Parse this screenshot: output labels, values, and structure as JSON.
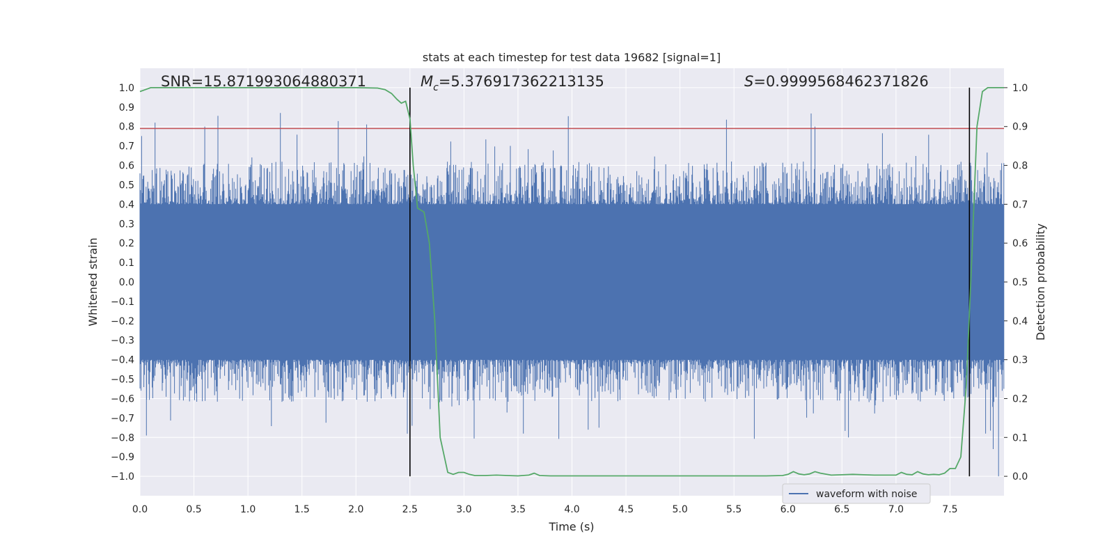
{
  "chart_data": {
    "type": "line",
    "title": "stats at each timestep for test data 19682 [signal=1]",
    "xlabel": "Time (s)",
    "ylabel_left": "Whitened strain",
    "ylabel_right": "Detection probability",
    "xlim": [
      0.0,
      8.0
    ],
    "ylim_left": [
      -1.1,
      1.1
    ],
    "ylim_right": [
      -0.05,
      1.05
    ],
    "x_ticks": [
      "0.0",
      "0.5",
      "1.0",
      "1.5",
      "2.0",
      "2.5",
      "3.0",
      "3.5",
      "4.0",
      "4.5",
      "5.0",
      "5.5",
      "6.0",
      "6.5",
      "7.0",
      "7.5"
    ],
    "y_ticks_left": [
      "−1.0",
      "−0.9",
      "−0.8",
      "−0.7",
      "−0.6",
      "−0.5",
      "−0.4",
      "−0.3",
      "−0.2",
      "−0.1",
      "0.0",
      "0.1",
      "0.2",
      "0.3",
      "0.4",
      "0.5",
      "0.6",
      "0.7",
      "0.8",
      "0.9",
      "1.0"
    ],
    "y_ticks_right": [
      "0.0",
      "0.1",
      "0.2",
      "0.3",
      "0.4",
      "0.5",
      "0.6",
      "0.7",
      "0.8",
      "0.9",
      "1.0"
    ],
    "grid": true,
    "legend_position": "lower-right",
    "annotations": {
      "snr": "SNR=15.871993064880371",
      "mc_symbol": "M",
      "mc_sub": "c",
      "mc_value": "=5.376917362213135",
      "s_symbol": "S",
      "s_value": "=0.9999568462371826"
    },
    "series": [
      {
        "name": "waveform with noise",
        "axis": "left",
        "color": "#4c72b0",
        "kind": "noisy-strain",
        "envelope_upper": 0.4,
        "envelope_lower": -0.4,
        "peak_max": 0.87,
        "peak_min": -1.0
      },
      {
        "axis": "right",
        "color": "#55a868",
        "x": [
          0.0,
          0.05,
          0.1,
          0.5,
          1.0,
          1.5,
          2.0,
          2.2,
          2.27,
          2.33,
          2.38,
          2.42,
          2.46,
          2.5,
          2.53,
          2.57,
          2.63,
          2.68,
          2.73,
          2.78,
          2.85,
          2.9,
          2.95,
          3.0,
          3.05,
          3.1,
          3.2,
          3.3,
          3.4,
          3.5,
          3.6,
          3.65,
          3.7,
          3.8,
          4.0,
          4.5,
          5.0,
          5.5,
          5.8,
          5.95,
          6.0,
          6.05,
          6.1,
          6.15,
          6.2,
          6.25,
          6.3,
          6.4,
          6.5,
          6.6,
          6.7,
          6.8,
          6.9,
          6.95,
          7.0,
          7.05,
          7.1,
          7.15,
          7.2,
          7.25,
          7.3,
          7.35,
          7.4,
          7.45,
          7.5,
          7.55,
          7.6,
          7.65,
          7.7,
          7.75,
          7.8,
          7.85,
          7.9,
          7.95,
          8.0
        ],
        "y": [
          0.99,
          0.995,
          1.0,
          1.0,
          1.0,
          1.0,
          1.0,
          0.999,
          0.995,
          0.985,
          0.97,
          0.96,
          0.965,
          0.92,
          0.8,
          0.69,
          0.68,
          0.6,
          0.4,
          0.1,
          0.01,
          0.005,
          0.01,
          0.01,
          0.005,
          0.002,
          0.002,
          0.003,
          0.002,
          0.001,
          0.003,
          0.008,
          0.002,
          0.001,
          0.001,
          0.001,
          0.001,
          0.001,
          0.001,
          0.002,
          0.005,
          0.012,
          0.006,
          0.004,
          0.006,
          0.012,
          0.008,
          0.003,
          0.004,
          0.005,
          0.004,
          0.003,
          0.003,
          0.003,
          0.003,
          0.01,
          0.005,
          0.004,
          0.012,
          0.006,
          0.004,
          0.005,
          0.004,
          0.008,
          0.02,
          0.02,
          0.05,
          0.23,
          0.55,
          0.9,
          0.99,
          1.0,
          1.0,
          1.0,
          1.0
        ]
      },
      {
        "axis": "left",
        "color": "#c44e52",
        "kind": "threshold",
        "y": 0.79
      }
    ],
    "vlines": {
      "x": [
        2.5,
        7.68
      ],
      "ymin": -1.0,
      "ymax": 1.0,
      "color": "#000000"
    }
  }
}
